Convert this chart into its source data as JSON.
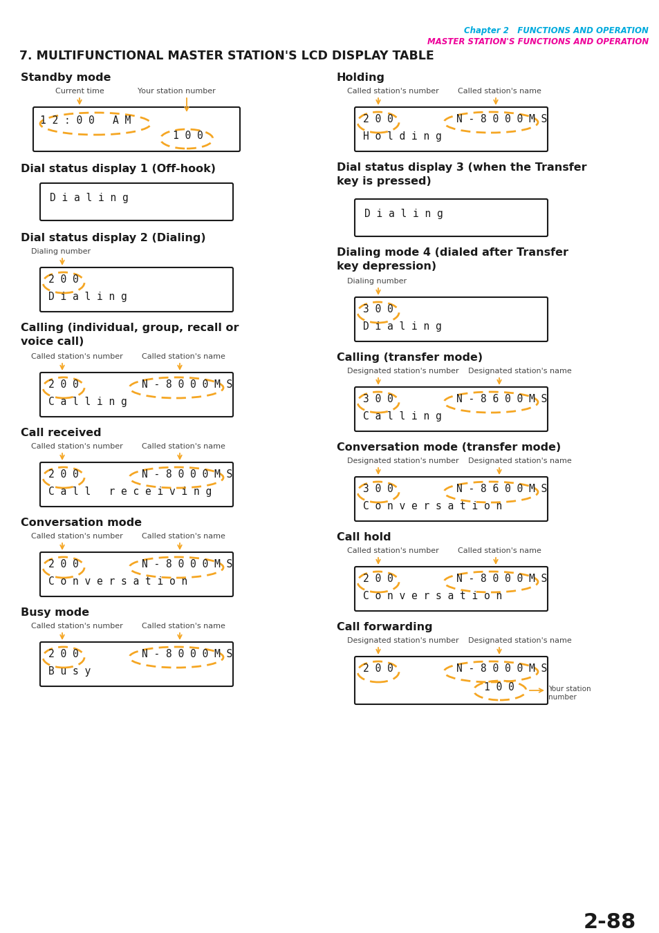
{
  "page_bg": "#ffffff",
  "header_line1": "Chapter 2   FUNCTIONS AND OPERATION",
  "header_line2": "MASTER STATION'S FUNCTIONS AND OPERATION",
  "header_line1_color": "#00aadd",
  "header_line2_color": "#ee0099",
  "main_title": "7. MULTIFUNCTIONAL MASTER STATION'S LCD DISPLAY TABLE",
  "page_number": "2-88",
  "orange": "#f5a623",
  "dark": "#1a1a1a",
  "gray_label": "#444444"
}
